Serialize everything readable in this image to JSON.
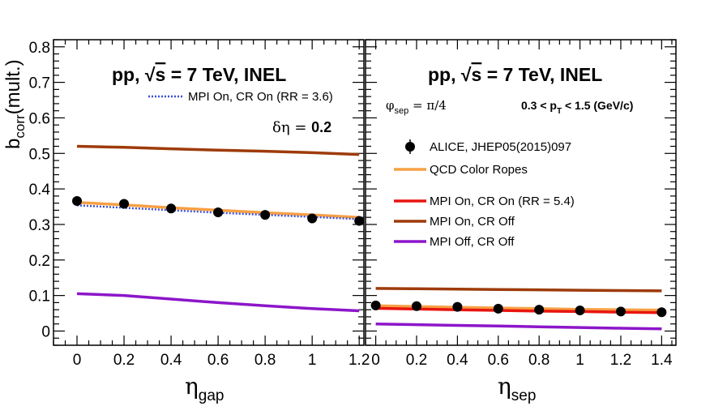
{
  "chart_data": [
    {
      "type": "line",
      "title": "pp, √s = 7 TeV, INEL",
      "title_prefix": "pp, ",
      "title_sqrt": "√",
      "title_s": "s",
      "title_suffix": " = 7 TeV, INEL",
      "xlabel_main": "η",
      "xlabel_sub": "gap",
      "ylabel_main": "b",
      "ylabel_sub": "corr",
      "ylabel_tail": "(mult.)",
      "xlim": [
        -0.1,
        1.22
      ],
      "ylim": [
        -0.04,
        0.82
      ],
      "xticks": [
        0,
        0.2,
        0.4,
        0.6,
        0.8,
        1,
        1.2
      ],
      "xtick_labels": [
        "0",
        "0.2",
        "0.4",
        "0.6",
        "0.8",
        "1",
        "1.2"
      ],
      "yticks": [
        0,
        0.1,
        0.2,
        0.3,
        0.4,
        0.5,
        0.6,
        0.7,
        0.8
      ],
      "ytick_labels": [
        "0",
        "0.1",
        "0.2",
        "0.3",
        "0.4",
        "0.5",
        "0.6",
        "0.7",
        "0.8"
      ],
      "annotation_deta": "δη = ",
      "annotation_deta_value": "0.2",
      "legend": [
        {
          "label": "MPI On, CR On (RR = 3.6)",
          "color": "#3a4fd8",
          "style": "dotted"
        }
      ],
      "series": [
        {
          "name": "MPI On, CR Off",
          "color": "#9e3b0a",
          "x": [
            0,
            0.2,
            0.4,
            0.6,
            0.8,
            1.0,
            1.2
          ],
          "values": [
            0.52,
            0.517,
            0.513,
            0.509,
            0.506,
            0.502,
            0.497
          ]
        },
        {
          "name": "QCD Color Ropes",
          "color": "#f7a045",
          "x": [
            0,
            0.2,
            0.4,
            0.6,
            0.8,
            1.0,
            1.2
          ],
          "values": [
            0.362,
            0.355,
            0.347,
            0.34,
            0.333,
            0.327,
            0.32
          ]
        },
        {
          "name": "MPI On, CR On (RR = 3.6)",
          "color": "#3a4fd8",
          "style": "dotted",
          "x": [
            0,
            0.2,
            0.4,
            0.6,
            0.8,
            1.0,
            1.2
          ],
          "values": [
            0.354,
            0.347,
            0.34,
            0.333,
            0.327,
            0.321,
            0.315
          ]
        },
        {
          "name": "MPI Off, CR Off",
          "color": "#8c16c9",
          "x": [
            0,
            0.2,
            0.4,
            0.6,
            0.8,
            1.0,
            1.2
          ],
          "values": [
            0.105,
            0.1,
            0.09,
            0.08,
            0.071,
            0.063,
            0.057
          ]
        },
        {
          "name": "ALICE, JHEP05(2015)097",
          "type": "points",
          "color": "#000000",
          "x": [
            0,
            0.2,
            0.4,
            0.6,
            0.8,
            1.0,
            1.2
          ],
          "values": [
            0.366,
            0.358,
            0.345,
            0.334,
            0.327,
            0.317,
            0.31
          ]
        }
      ]
    },
    {
      "type": "line",
      "title": "pp, √s = 7 TeV, INEL",
      "title_prefix": "pp, ",
      "title_sqrt": "√",
      "title_s": "s",
      "title_suffix": " = 7 TeV, INEL",
      "xlabel_main": "η",
      "xlabel_sub": "sep",
      "xlim": [
        -0.05,
        1.47
      ],
      "ylim": [
        -0.04,
        0.82
      ],
      "xticks": [
        0,
        0.2,
        0.4,
        0.6,
        0.8,
        1,
        1.2,
        1.4
      ],
      "xtick_labels": [
        "0",
        "0.2",
        "0.4",
        "0.6",
        "0.8",
        "1",
        "1.2",
        "1.4"
      ],
      "annotation_phi": "φ",
      "annotation_phi_sub": "sep",
      "annotation_phi_value": " = π/4",
      "annotation_pt_left": "0.3 < p",
      "annotation_pt_sub": "T",
      "annotation_pt_right": " < 1.5 (GeV/c)",
      "legend": [
        {
          "label": "ALICE, JHEP05(2015)097",
          "color": "#000000",
          "style": "marker"
        },
        {
          "label": "QCD Color Ropes",
          "color": "#f7a045",
          "style": "line"
        },
        {
          "label": "MPI On, CR On (RR = 5.4)",
          "color": "#e8150f",
          "style": "line"
        },
        {
          "label": "MPI On, CR Off",
          "color": "#9e3b0a",
          "style": "line"
        },
        {
          "label": "MPI Off, CR Off",
          "color": "#8c16c9",
          "style": "line"
        }
      ],
      "series": [
        {
          "name": "MPI On, CR Off",
          "color": "#9e3b0a",
          "x": [
            0,
            0.2,
            0.4,
            0.6,
            0.8,
            1.0,
            1.2,
            1.4
          ],
          "values": [
            0.12,
            0.119,
            0.118,
            0.117,
            0.116,
            0.115,
            0.114,
            0.113
          ]
        },
        {
          "name": "QCD Color Ropes",
          "color": "#f7a045",
          "x": [
            0,
            0.2,
            0.4,
            0.6,
            0.8,
            1.0,
            1.2,
            1.4
          ],
          "values": [
            0.071,
            0.069,
            0.067,
            0.065,
            0.063,
            0.061,
            0.06,
            0.059
          ]
        },
        {
          "name": "MPI On, CR On (RR = 5.4)",
          "color": "#e8150f",
          "x": [
            0,
            0.2,
            0.4,
            0.6,
            0.8,
            1.0,
            1.2,
            1.4
          ],
          "values": [
            0.064,
            0.062,
            0.06,
            0.058,
            0.056,
            0.055,
            0.053,
            0.052
          ]
        },
        {
          "name": "MPI Off, CR Off",
          "color": "#8c16c9",
          "x": [
            0,
            0.2,
            0.4,
            0.6,
            0.8,
            1.0,
            1.2,
            1.4
          ],
          "values": [
            0.02,
            0.018,
            0.016,
            0.014,
            0.012,
            0.01,
            0.008,
            0.006
          ]
        },
        {
          "name": "ALICE, JHEP05(2015)097",
          "type": "points",
          "color": "#000000",
          "x": [
            0,
            0.2,
            0.4,
            0.6,
            0.8,
            1.0,
            1.2,
            1.4
          ],
          "values": [
            0.072,
            0.07,
            0.068,
            0.063,
            0.06,
            0.058,
            0.055,
            0.053
          ]
        }
      ]
    }
  ]
}
